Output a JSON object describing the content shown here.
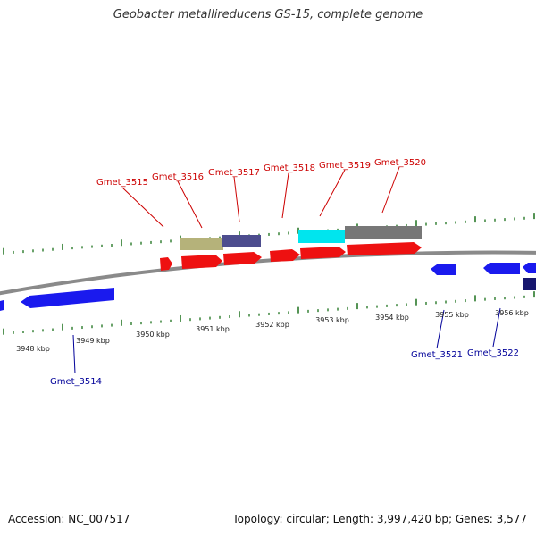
{
  "title": "Geobacter metallireducens GS-15, complete genome",
  "footer": {
    "accession": "Accession: NC_007517",
    "topology": "Topology: circular; Length: 3,997,420 bp; Genes: 3,577"
  },
  "colors": {
    "forward_gene": "#ee1111",
    "reverse_gene": "#1a1aee",
    "reverse_gene_dark": "#16166e",
    "forward_label": "#cc0000",
    "reverse_label": "#000099",
    "backbone": "#888888",
    "tick": "#2a7a2a",
    "feature_khaki": "#b5b27a",
    "feature_slate": "#4d4d8e",
    "feature_cyan": "#00e5ee",
    "feature_gray": "#777777"
  },
  "scale_labels": [
    "3948 kbp",
    "3949 kbp",
    "3950 kbp",
    "3951 kbp",
    "3952 kbp",
    "3953 kbp",
    "3954 kbp",
    "3955 kbp",
    "3956 kbp"
  ],
  "forward_gene_labels": [
    "Gmet_3515",
    "Gmet_3516",
    "Gmet_3517",
    "Gmet_3518",
    "Gmet_3519",
    "Gmet_3520"
  ],
  "reverse_gene_labels": [
    "Gmet_3514",
    "Gmet_3521",
    "Gmet_3522"
  ]
}
